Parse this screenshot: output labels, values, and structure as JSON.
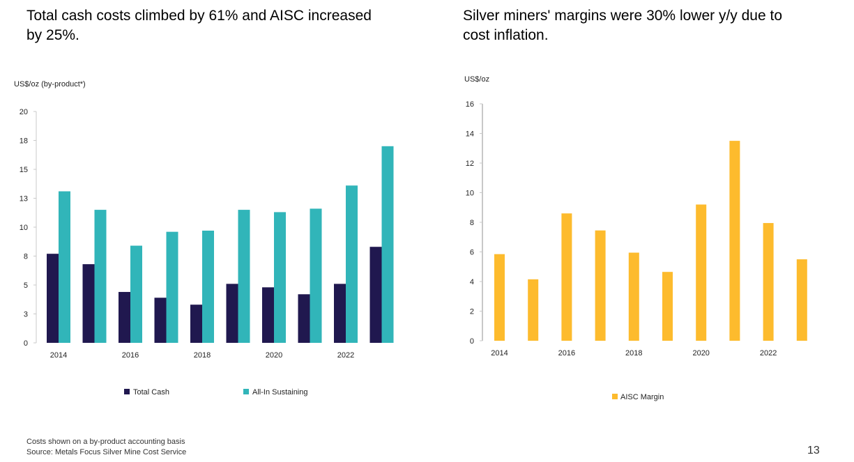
{
  "headlines": {
    "left": "Total cash costs climbed by 61% and AISC increased by 25%.",
    "right": "Silver miners' margins were 30% lower y/y due to cost inflation."
  },
  "colors": {
    "total_cash": "#20184f",
    "all_in_sustaining": "#31b5b9",
    "aisc_margin": "#fdbb2d",
    "axis": "#c8c8c8"
  },
  "chart_data": [
    {
      "type": "bar",
      "title": "",
      "ylabel": "US$/oz (by-product*)",
      "xlabel": "",
      "ylim": [
        0,
        20
      ],
      "yticks": [
        0,
        2.5,
        5,
        7.5,
        10,
        12.5,
        15,
        17.5,
        20
      ],
      "ytick_labels": [
        "0",
        "3",
        "5",
        "8",
        "10",
        "13",
        "15",
        "18",
        "20"
      ],
      "categories": [
        "2014",
        "2015",
        "2016",
        "2017",
        "2018",
        "2019",
        "2020",
        "2021",
        "2022",
        "2023"
      ],
      "xtick_labels": [
        "2014",
        "",
        "2016",
        "",
        "2018",
        "",
        "2020",
        "",
        "2022",
        ""
      ],
      "series": [
        {
          "name": "Total Cash",
          "values": [
            7.7,
            6.8,
            4.4,
            3.9,
            3.3,
            5.1,
            4.8,
            4.2,
            5.1,
            8.3
          ]
        },
        {
          "name": "All-In Sustaining",
          "values": [
            13.1,
            11.5,
            8.4,
            9.6,
            9.7,
            11.5,
            11.3,
            11.6,
            13.6,
            17.0
          ]
        }
      ],
      "legend": [
        "Total Cash",
        "All-In Sustaining"
      ],
      "legend_position": "bottom",
      "grid": false
    },
    {
      "type": "bar",
      "title": "",
      "ylabel": "US$/oz",
      "xlabel": "",
      "ylim": [
        0,
        16
      ],
      "yticks": [
        0,
        2,
        4,
        6,
        8,
        10,
        12,
        14,
        16
      ],
      "ytick_labels": [
        "0",
        "2",
        "4",
        "6",
        "8",
        "10",
        "12",
        "14",
        "16"
      ],
      "categories": [
        "2014",
        "2015",
        "2016",
        "2017",
        "2018",
        "2019",
        "2020",
        "2021",
        "2022",
        "2023"
      ],
      "xtick_labels": [
        "2014",
        "",
        "2016",
        "",
        "2018",
        "",
        "2020",
        "",
        "2022",
        ""
      ],
      "series": [
        {
          "name": "AISC Margin",
          "values": [
            5.85,
            4.15,
            8.6,
            7.45,
            5.95,
            4.65,
            9.2,
            13.5,
            7.95,
            5.5
          ]
        }
      ],
      "legend": [
        "AISC Margin"
      ],
      "legend_position": "bottom",
      "grid": false
    }
  ],
  "footnotes": [
    "Costs shown on a by-product accounting basis",
    "Source: Metals Focus Silver Mine Cost Service"
  ],
  "page_number": "13"
}
